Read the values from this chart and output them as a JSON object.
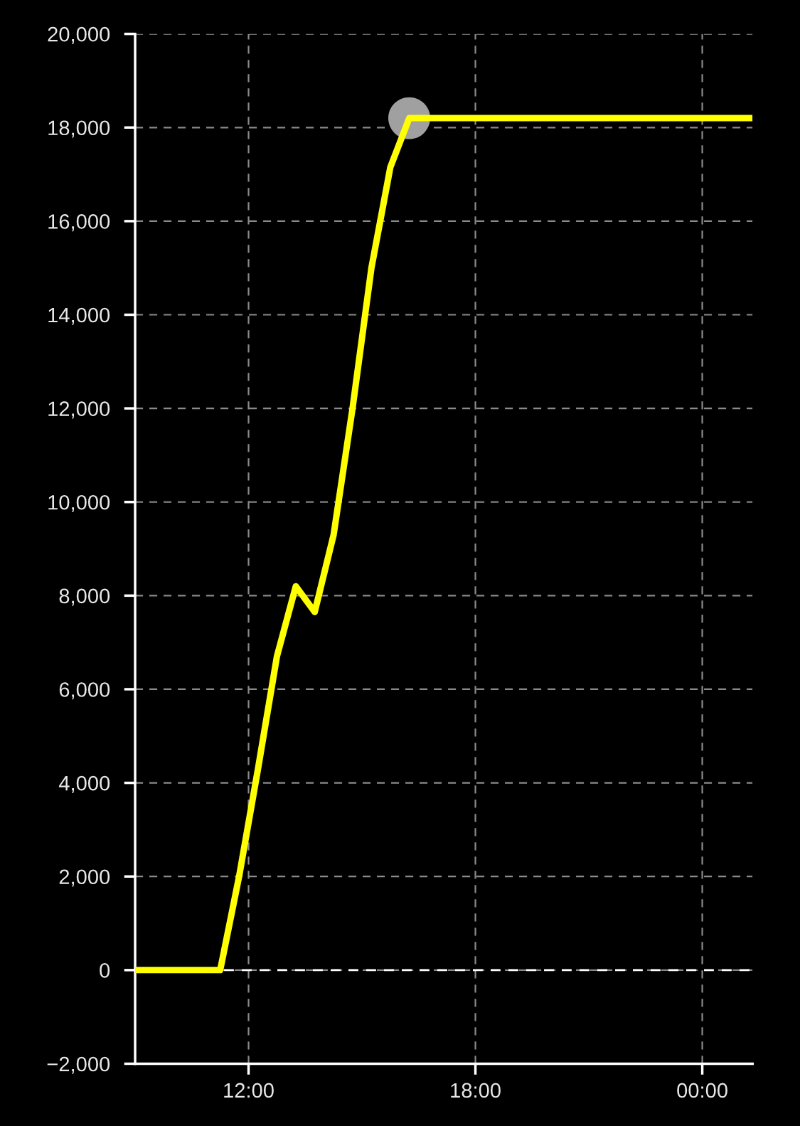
{
  "chart_data": {
    "type": "line",
    "x": [
      9,
      11.25,
      11.75,
      12.25,
      12.75,
      13.25,
      13.75,
      14.25,
      14.75,
      15.25,
      15.75,
      16.25,
      25.33
    ],
    "series": [
      {
        "color": "#ffff00",
        "values": [
          0,
          0,
          2000,
          4300,
          6700,
          8200,
          7650,
          9300,
          12000,
          15000,
          17150,
          18200,
          18200
        ]
      },
      {
        "type": "scatter",
        "color": "#a0a0a0",
        "x": [
          16.25
        ],
        "values": [
          18200
        ],
        "marker": "circle"
      }
    ],
    "marker": "none",
    "line_style": "solid",
    "xlim": [
      9,
      25.33
    ],
    "xticks": [
      {
        "value": 12,
        "label": "12:00"
      },
      {
        "value": 18,
        "label": "18:00"
      },
      {
        "value": 24,
        "label": "00:00"
      }
    ],
    "ylim": [
      -2000,
      20000
    ],
    "yticks": [
      {
        "value": -2000,
        "label": "−2,000"
      },
      0,
      {
        "value": 2000,
        "label": "2,000"
      },
      {
        "value": 4000,
        "label": "4,000"
      },
      {
        "value": 6000,
        "label": "6,000"
      },
      {
        "value": 8000,
        "label": "8,000"
      },
      {
        "value": 10000,
        "label": "10,000"
      },
      {
        "value": 12000,
        "label": "12,000"
      },
      {
        "value": 14000,
        "label": "14,000"
      },
      {
        "value": 16000,
        "label": "16,000"
      },
      {
        "value": 18000,
        "label": "18,000"
      },
      {
        "value": 20000,
        "label": "20,000"
      }
    ],
    "grid": true,
    "ref_lines": [
      {
        "axis": "y",
        "value": 0,
        "color": "#ffffff",
        "line_style": "dashed"
      }
    ]
  }
}
